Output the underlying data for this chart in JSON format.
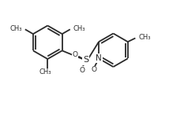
{
  "bg_color": "#ffffff",
  "line_color": "#2a2a2a",
  "line_width": 1.3,
  "font_size": 6.5,
  "figsize": [
    2.14,
    1.5
  ],
  "dpi": 100,
  "xlim": [
    0.0,
    10.0
  ],
  "ylim": [
    0.0,
    7.0
  ]
}
